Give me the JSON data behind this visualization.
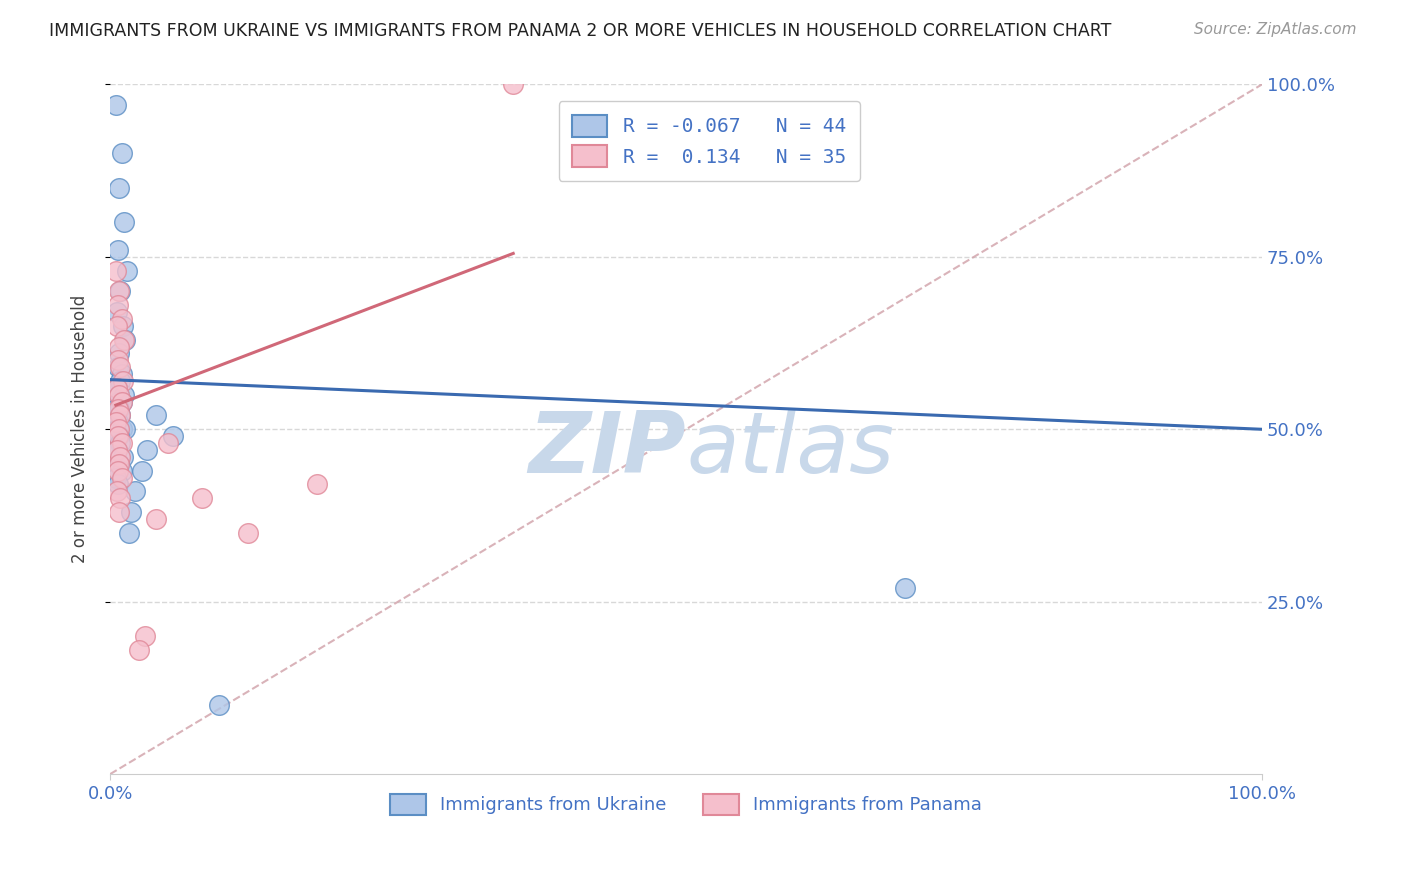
{
  "title": "IMMIGRANTS FROM UKRAINE VS IMMIGRANTS FROM PANAMA 2 OR MORE VEHICLES IN HOUSEHOLD CORRELATION CHART",
  "source": "Source: ZipAtlas.com",
  "ylabel": "2 or more Vehicles in Household",
  "xlim": [
    0,
    1.0
  ],
  "ylim": [
    0,
    1.0
  ],
  "x_tick_labels": [
    "0.0%",
    "100.0%"
  ],
  "y_tick_labels": [
    "25.0%",
    "50.0%",
    "75.0%",
    "100.0%"
  ],
  "y_tick_values": [
    0.25,
    0.5,
    0.75,
    1.0
  ],
  "legend_ukraine": "Immigrants from Ukraine",
  "legend_panama": "Immigrants from Panama",
  "R_ukraine": -0.067,
  "N_ukraine": 44,
  "R_panama": 0.134,
  "N_panama": 35,
  "ukraine_color": "#aec6e8",
  "panama_color": "#f5bfcc",
  "ukraine_edge_color": "#5b8ec4",
  "panama_edge_color": "#e08898",
  "ukraine_line_color": "#3a6ab0",
  "panama_line_color": "#d06878",
  "ref_line_color": "#d0a0a8",
  "watermark_color": "#c8d8ea",
  "background_color": "#ffffff",
  "grid_color": "#d8d8d8",
  "ukraine_x": [
    0.005,
    0.01,
    0.008,
    0.012,
    0.007,
    0.015,
    0.009,
    0.006,
    0.011,
    0.013,
    0.008,
    0.007,
    0.01,
    0.009,
    0.006,
    0.008,
    0.012,
    0.007,
    0.01,
    0.005,
    0.008,
    0.009,
    0.007,
    0.006,
    0.01,
    0.013,
    0.008,
    0.007,
    0.009,
    0.006,
    0.011,
    0.008,
    0.01,
    0.005,
    0.007,
    0.04,
    0.055,
    0.032,
    0.028,
    0.022,
    0.018,
    0.016,
    0.69,
    0.095
  ],
  "ukraine_y": [
    0.97,
    0.9,
    0.85,
    0.8,
    0.76,
    0.73,
    0.7,
    0.67,
    0.65,
    0.63,
    0.61,
    0.59,
    0.58,
    0.57,
    0.56,
    0.55,
    0.55,
    0.54,
    0.54,
    0.53,
    0.53,
    0.52,
    0.51,
    0.5,
    0.5,
    0.5,
    0.49,
    0.49,
    0.48,
    0.47,
    0.46,
    0.45,
    0.44,
    0.43,
    0.42,
    0.52,
    0.49,
    0.47,
    0.44,
    0.41,
    0.38,
    0.35,
    0.27,
    0.1
  ],
  "panama_x": [
    0.005,
    0.008,
    0.007,
    0.01,
    0.006,
    0.012,
    0.008,
    0.007,
    0.009,
    0.011,
    0.006,
    0.008,
    0.01,
    0.007,
    0.009,
    0.005,
    0.008,
    0.007,
    0.01,
    0.006,
    0.009,
    0.008,
    0.007,
    0.01,
    0.006,
    0.009,
    0.008,
    0.35,
    0.18,
    0.12,
    0.08,
    0.05,
    0.04,
    0.03,
    0.025
  ],
  "panama_y": [
    0.73,
    0.7,
    0.68,
    0.66,
    0.65,
    0.63,
    0.62,
    0.6,
    0.59,
    0.57,
    0.56,
    0.55,
    0.54,
    0.53,
    0.52,
    0.51,
    0.5,
    0.49,
    0.48,
    0.47,
    0.46,
    0.45,
    0.44,
    0.43,
    0.41,
    0.4,
    0.38,
    1.0,
    0.42,
    0.35,
    0.4,
    0.48,
    0.37,
    0.2,
    0.18
  ]
}
